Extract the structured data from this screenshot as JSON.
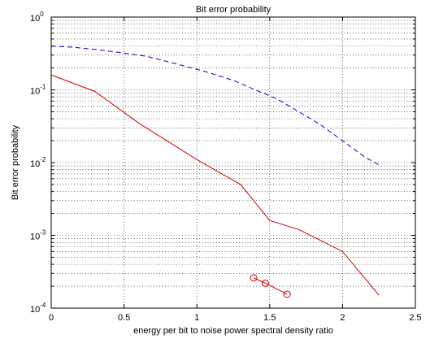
{
  "chart_data": {
    "type": "line",
    "title": "Bit error probability",
    "xlabel": "energy per bit to noise power spectral density ratio",
    "ylabel": "Bit error probability",
    "xlim": [
      0,
      2.5
    ],
    "ylim": [
      0.0001,
      1
    ],
    "yscale": "log",
    "grid": true,
    "xticks": [
      "0",
      "0.5",
      "1",
      "1.5",
      "2",
      "2.5"
    ],
    "yticks": [
      {
        "base": "10",
        "exp": "0",
        "value": 1
      },
      {
        "base": "10",
        "exp": "-1",
        "value": 0.1
      },
      {
        "base": "10",
        "exp": "-2",
        "value": 0.01
      },
      {
        "base": "10",
        "exp": "-3",
        "value": 0.001
      },
      {
        "base": "10",
        "exp": "-4",
        "value": 0.0001
      }
    ],
    "series": [
      {
        "style": "dashed",
        "color": "#0000cc",
        "x": [
          0,
          0.15,
          0.3,
          0.45,
          0.65,
          0.85,
          1.05,
          1.25,
          1.4,
          1.55,
          1.7,
          1.85,
          2.0,
          2.15,
          2.25
        ],
        "y": [
          0.4,
          0.385,
          0.36,
          0.33,
          0.29,
          0.23,
          0.18,
          0.135,
          0.1,
          0.075,
          0.05,
          0.033,
          0.02,
          0.012,
          0.0093
        ]
      },
      {
        "style": "solid",
        "color": "#cc0000",
        "x": [
          0,
          0.3,
          0.6,
          1.0,
          1.3,
          1.5,
          1.7,
          2.0,
          2.25
        ],
        "y": [
          0.16,
          0.095,
          0.035,
          0.011,
          0.005,
          0.0016,
          0.0012,
          0.0006,
          0.00015
        ]
      },
      {
        "style": "markers",
        "marker": "circle",
        "color": "#cc0000",
        "x": [
          1.39,
          1.47,
          1.62
        ],
        "y": [
          0.00026,
          0.00022,
          0.000155
        ]
      }
    ]
  }
}
